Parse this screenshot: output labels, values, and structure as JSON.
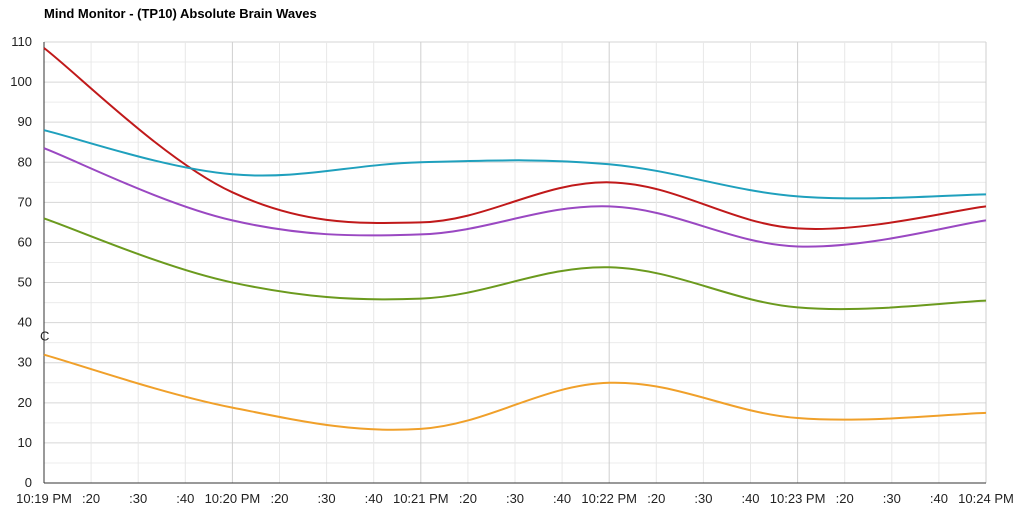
{
  "chart_data": {
    "type": "line",
    "title": "Mind Monitor - (TP10) Absolute Brain Waves",
    "xlabel": "",
    "ylabel": "",
    "ylim": [
      0,
      110
    ],
    "xlim": [
      "10:19 PM",
      "10:24 PM"
    ],
    "y_ticks": [
      "0",
      "10",
      "20",
      "30",
      "40",
      "50",
      "60",
      "70",
      "80",
      "90",
      "100",
      "110"
    ],
    "x_ticks": [
      "10:19 PM",
      ":20",
      ":30",
      ":40",
      "10:20 PM",
      ":20",
      ":30",
      ":40",
      "10:21 PM",
      ":20",
      ":30",
      ":40",
      "10:22 PM",
      ":20",
      ":30",
      ":40",
      "10:23 PM",
      ":20",
      ":30",
      ":40",
      "10:24 PM"
    ],
    "grid": true,
    "annotation": "C",
    "x": [
      "10:19 PM",
      "10:20 PM",
      "10:21 PM",
      "10:22 PM",
      "10:23 PM",
      "10:24 PM"
    ],
    "series": [
      {
        "color": "#c0191a",
        "values": [
          108.5,
          72.5,
          65,
          75,
          63.5,
          69
        ]
      },
      {
        "color": "#1fa0bd",
        "values": [
          88,
          77,
          80,
          79.5,
          71.5,
          72
        ]
      },
      {
        "color": "#9a48c2",
        "values": [
          83.5,
          65.5,
          62,
          69,
          59,
          65.5
        ]
      },
      {
        "color": "#6b9a1e",
        "values": [
          66,
          50,
          46,
          53.8,
          43.8,
          45.5
        ]
      },
      {
        "color": "#f0a02a",
        "values": [
          32,
          18.8,
          13.5,
          25,
          16.2,
          17.5
        ]
      }
    ]
  }
}
